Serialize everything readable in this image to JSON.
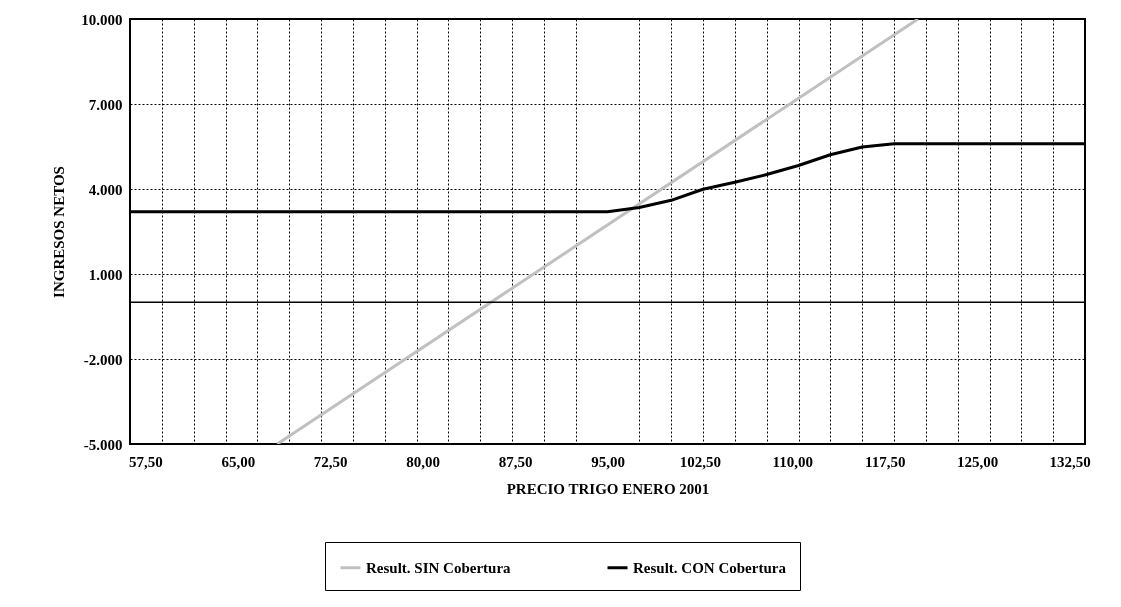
{
  "chart_data": {
    "type": "line",
    "xlabel": "PRECIO TRIGO ENERO 2001",
    "ylabel": "INGRESOS NETOS",
    "series": [
      {
        "name": "Result. SIN Cobertura",
        "color": "#c0c0c0",
        "x": [
          68.2,
          120.2
        ],
        "values": [
          -5000,
          10000
        ]
      },
      {
        "name": "Result. CON Cobertura",
        "color": "#000000",
        "x": [
          56.25,
          95,
          97.58,
          100.17,
          102.75,
          105.33,
          107.92,
          110.5,
          113.08,
          115.67,
          118.25,
          133.75
        ],
        "values": [
          3200,
          3200,
          3350,
          3600,
          3990,
          4240,
          4510,
          4830,
          5210,
          5480,
          5600,
          5600
        ]
      }
    ],
    "xlim": [
      56.25,
      133.75
    ],
    "xticks": [
      {
        "value": 57.5,
        "label": "57,50"
      },
      {
        "value": 58.83,
        "label": null
      },
      {
        "value": 61.42,
        "label": null
      },
      {
        "value": 64.0,
        "label": null
      },
      {
        "value": 65,
        "label": "65,00"
      },
      {
        "value": 66.58,
        "label": null
      },
      {
        "value": 69.17,
        "label": null
      },
      {
        "value": 71.75,
        "label": null
      },
      {
        "value": 72.5,
        "label": "72,50"
      },
      {
        "value": 74.33,
        "label": null
      },
      {
        "value": 76.92,
        "label": null
      },
      {
        "value": 79.5,
        "label": null
      },
      {
        "value": 80,
        "label": "80,00"
      },
      {
        "value": 82.08,
        "label": null
      },
      {
        "value": 84.67,
        "label": null
      },
      {
        "value": 87.25,
        "label": null
      },
      {
        "value": 87.5,
        "label": "87,50"
      },
      {
        "value": 89.83,
        "label": null
      },
      {
        "value": 92.42,
        "label": null
      },
      {
        "value": 95,
        "label": "95,00"
      },
      {
        "value": 97.58,
        "label": null
      },
      {
        "value": 100.17,
        "label": null
      },
      {
        "value": 102.5,
        "label": "102,50"
      },
      {
        "value": 102.75,
        "label": null
      },
      {
        "value": 105.33,
        "label": null
      },
      {
        "value": 107.92,
        "label": null
      },
      {
        "value": 110,
        "label": "110,00"
      },
      {
        "value": 110.5,
        "label": null
      },
      {
        "value": 113.08,
        "label": null
      },
      {
        "value": 115.67,
        "label": null
      },
      {
        "value": 117.5,
        "label": "117,50"
      },
      {
        "value": 118.25,
        "label": null
      },
      {
        "value": 120.83,
        "label": null
      },
      {
        "value": 123.42,
        "label": null
      },
      {
        "value": 125,
        "label": "125,00"
      },
      {
        "value": 126.0,
        "label": null
      },
      {
        "value": 128.58,
        "label": null
      },
      {
        "value": 131.17,
        "label": null
      },
      {
        "value": 132.5,
        "label": "132,50"
      }
    ],
    "ylim": [
      -5000,
      10000
    ],
    "yticks": [
      {
        "value": -5000,
        "label": "-5.000"
      },
      {
        "value": -2000,
        "label": "-2.000"
      },
      {
        "value": 1000,
        "label": "1.000"
      },
      {
        "value": 4000,
        "label": "4.000"
      },
      {
        "value": 7000,
        "label": "7.000"
      },
      {
        "value": 10000,
        "label": "10.000"
      }
    ],
    "ref_lines": [
      {
        "axis": "y",
        "value": 0,
        "color": "#000000"
      }
    ],
    "grid": true,
    "legend": "bottom",
    "line_style": "solid",
    "marker": "none"
  }
}
